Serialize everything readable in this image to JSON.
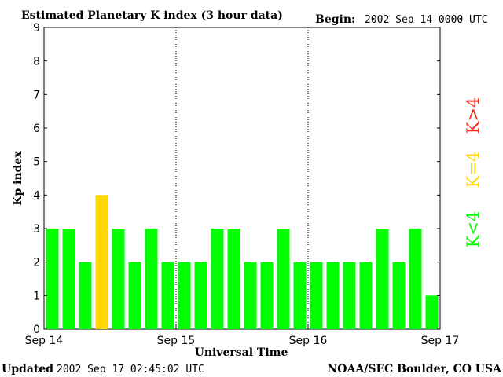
{
  "header": {
    "title": "Estimated Planetary K index (3 hour data)",
    "begin_label": "Begin:",
    "begin_value": "2002 Sep 14 0000 UTC"
  },
  "footer": {
    "updated_label": "Updated",
    "updated_value": "2002 Sep 17 02:45:02 UTC",
    "credit": "NOAA/SEC Boulder, CO USA"
  },
  "legend": {
    "low": "K<4",
    "eq": "K=4",
    "high": "K>4"
  },
  "colors": {
    "low": "#00ff00",
    "eq": "#ffd700",
    "high": "#ff2a1a"
  },
  "chart_data": {
    "type": "bar",
    "title": "Estimated Planetary K index (3 hour data)",
    "xlabel": "Universal Time",
    "ylabel": "Kp index",
    "ylim": [
      0,
      9
    ],
    "yticks": [
      "0",
      "1",
      "2",
      "3",
      "4",
      "5",
      "6",
      "7",
      "8",
      "9"
    ],
    "xticks": [
      "Sep 14",
      "Sep 15",
      "Sep 16",
      "Sep 17"
    ],
    "day_separators": [
      "Sep 15",
      "Sep 16"
    ],
    "bars_per_day": 8,
    "values": [
      3,
      3,
      2,
      4,
      3,
      2,
      3,
      2,
      2,
      2,
      3,
      3,
      2,
      2,
      3,
      2,
      2,
      2,
      2,
      2,
      3,
      2,
      3,
      1
    ],
    "color_rule": {
      "below_4": "low",
      "equal_4": "eq",
      "above_4": "high"
    }
  }
}
